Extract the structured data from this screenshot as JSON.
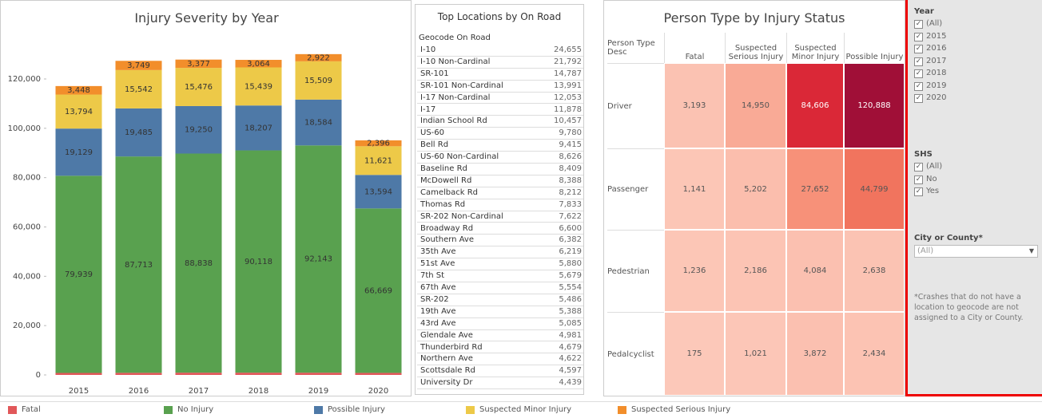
{
  "chart_data": [
    {
      "type": "bar",
      "stacked": true,
      "title": "Injury Severity by Year",
      "categories": [
        "2015",
        "2016",
        "2017",
        "2018",
        "2019",
        "2020"
      ],
      "series": [
        {
          "name": "Fatal",
          "color": "#e15759",
          "values": [
            811,
            856,
            917,
            918,
            909,
            831
          ],
          "value_labels": [
            "811",
            "856",
            "917",
            "918",
            "909",
            "831"
          ]
        },
        {
          "name": "No Injury",
          "color": "#59a14f",
          "values": [
            79939,
            87713,
            88838,
            90118,
            92143,
            66669
          ],
          "value_labels": [
            "79,939",
            "87,713",
            "88,838",
            "90,118",
            "92,143",
            "66,669"
          ]
        },
        {
          "name": "Possible Injury",
          "color": "#4e79a7",
          "values": [
            19129,
            19485,
            19250,
            18207,
            18584,
            13594
          ],
          "value_labels": [
            "19,129",
            "19,485",
            "19,250",
            "18,207",
            "18,584",
            "13,594"
          ]
        },
        {
          "name": "Suspected Minor Injury",
          "color": "#edc948",
          "values": [
            13794,
            15542,
            15476,
            15439,
            15509,
            11621
          ],
          "value_labels": [
            "13,794",
            "15,542",
            "15,476",
            "15,439",
            "15,509",
            "11,621"
          ]
        },
        {
          "name": "Suspected Serious Injury",
          "color": "#f28e2b",
          "values": [
            3448,
            3749,
            3377,
            3064,
            2922,
            2396
          ],
          "value_labels": [
            "3,448",
            "3,749",
            "3,377",
            "3,064",
            "2,922",
            "2,396"
          ]
        }
      ],
      "ylim": [
        0,
        135000
      ],
      "yticks": [
        0,
        {
          "value": 20000,
          "label": "20,000"
        },
        {
          "value": 40000,
          "label": "40,000"
        },
        {
          "value": 60000,
          "label": "60,000"
        },
        {
          "value": 80000,
          "label": "80,000"
        },
        {
          "value": 100000,
          "label": "100,000"
        },
        {
          "value": 120000,
          "label": "120,000"
        }
      ],
      "legend": "bottom"
    },
    {
      "type": "heatmap",
      "title": "Person Type by Injury Status",
      "row_header": "Person Type Desc",
      "columns": [
        "Fatal",
        "Suspected Serious Injury",
        "Suspected Minor Injury",
        "Possible Injury"
      ],
      "rows": [
        "Driver",
        "Passenger",
        "Pedestrian",
        "Pedalcyclist"
      ],
      "values": [
        [
          3193,
          14950,
          84606,
          120888
        ],
        [
          1141,
          5202,
          27652,
          44799
        ],
        [
          1236,
          2186,
          4084,
          2638
        ],
        [
          175,
          1021,
          3872,
          2434
        ]
      ],
      "value_labels": [
        [
          "3,193",
          "14,950",
          "84,606",
          "120,888"
        ],
        [
          "1,141",
          "5,202",
          "27,652",
          "44,799"
        ],
        [
          "1,236",
          "2,186",
          "4,084",
          "2,638"
        ],
        [
          "175",
          "1,021",
          "3,872",
          "2,434"
        ]
      ]
    }
  ],
  "table": {
    "title": "Top Locations by On Road",
    "header": "Geocode On Road",
    "rows": [
      [
        "I-10",
        "24,655"
      ],
      [
        "I-10 Non-Cardinal",
        "21,792"
      ],
      [
        "SR-101",
        "14,787"
      ],
      [
        "SR-101 Non-Cardinal",
        "13,991"
      ],
      [
        "I-17 Non-Cardinal",
        "12,053"
      ],
      [
        "I-17",
        "11,878"
      ],
      [
        "Indian School Rd",
        "10,457"
      ],
      [
        "US-60",
        "9,780"
      ],
      [
        "Bell Rd",
        "9,415"
      ],
      [
        "US-60 Non-Cardinal",
        "8,626"
      ],
      [
        "Baseline Rd",
        "8,409"
      ],
      [
        "McDowell Rd",
        "8,388"
      ],
      [
        "Camelback Rd",
        "8,212"
      ],
      [
        "Thomas Rd",
        "7,833"
      ],
      [
        "SR-202 Non-Cardinal",
        "7,622"
      ],
      [
        "Broadway Rd",
        "6,600"
      ],
      [
        "Southern Ave",
        "6,382"
      ],
      [
        "35th Ave",
        "6,219"
      ],
      [
        "51st Ave",
        "5,880"
      ],
      [
        "7th St",
        "5,679"
      ],
      [
        "67th Ave",
        "5,554"
      ],
      [
        "SR-202",
        "5,486"
      ],
      [
        "19th Ave",
        "5,388"
      ],
      [
        "43rd Ave",
        "5,085"
      ],
      [
        "Glendale Ave",
        "4,981"
      ],
      [
        "Thunderbird Rd",
        "4,679"
      ],
      [
        "Northern Ave",
        "4,622"
      ],
      [
        "Scottsdale Rd",
        "4,597"
      ],
      [
        "University Dr",
        "4,439"
      ]
    ]
  },
  "filters": {
    "year": {
      "title": "Year",
      "options": [
        "(All)",
        "2015",
        "2016",
        "2017",
        "2018",
        "2019",
        "2020"
      ]
    },
    "shs": {
      "title": "SHS",
      "options": [
        "(All)",
        "No",
        "Yes"
      ]
    },
    "city": {
      "title": "City or County*",
      "selected": "(All)",
      "note": "*Crashes that do not have a location to geocode are not assigned to a City or County."
    }
  }
}
